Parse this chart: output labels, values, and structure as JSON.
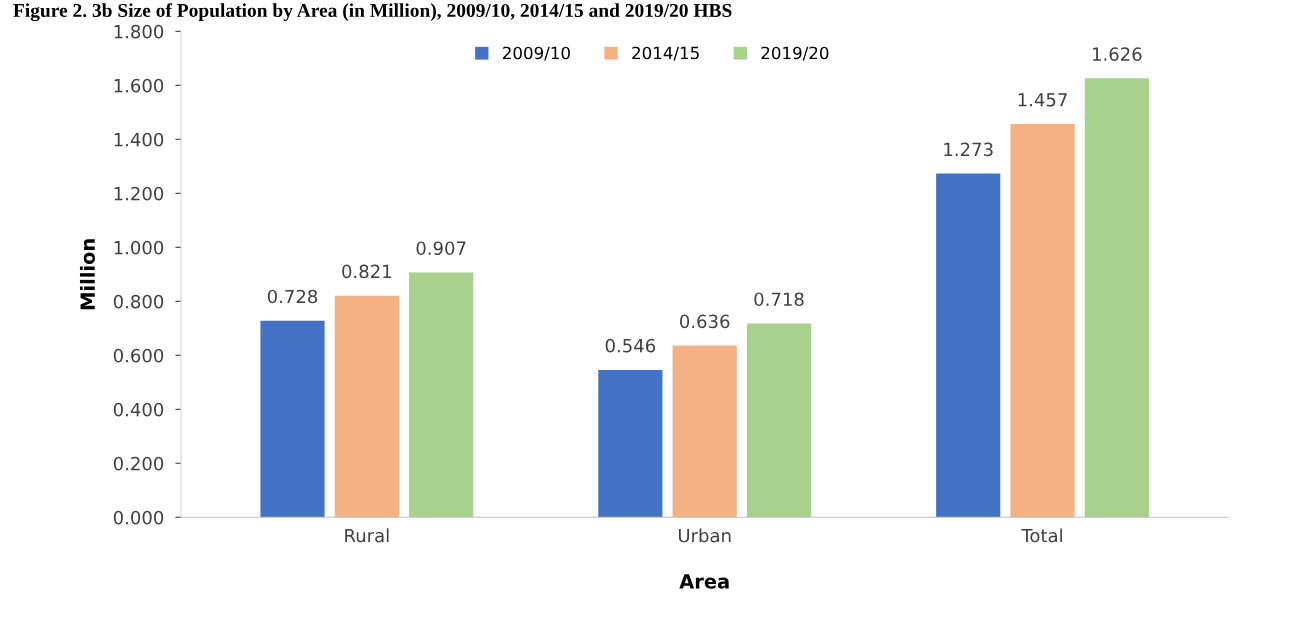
{
  "chart_data": {
    "type": "bar",
    "title": "Figure 2. 3b Size of Population by Area (in Million), 2009/10, 2014/15 and 2019/20 HBS",
    "xlabel": "Area",
    "ylabel": "Million",
    "categories": [
      "Rural",
      "Urban",
      "Total"
    ],
    "series": [
      {
        "name": "2009/10",
        "color": "#4472c4",
        "values": [
          0.728,
          0.546,
          1.273
        ]
      },
      {
        "name": "2014/15",
        "color": "#f4b183",
        "values": [
          0.821,
          0.636,
          1.457
        ]
      },
      {
        "name": "2019/20",
        "color": "#a9d18e",
        "values": [
          0.907,
          0.718,
          1.626
        ]
      }
    ],
    "ylim": [
      0,
      1.8
    ],
    "yticks": [
      {
        "value": 0,
        "label": "0.000"
      },
      {
        "value": 0.2,
        "label": "0.200"
      },
      {
        "value": 0.4,
        "label": "0.400"
      },
      {
        "value": 0.6,
        "label": "0.600"
      },
      {
        "value": 0.8,
        "label": "0.800"
      },
      {
        "value": 1.0,
        "label": "1.000"
      },
      {
        "value": 1.2,
        "label": "1.200"
      },
      {
        "value": 1.4,
        "label": "1.400"
      },
      {
        "value": 1.6,
        "label": "1.600"
      },
      {
        "value": 1.8,
        "label": "1.800"
      }
    ],
    "data_labels": true,
    "grid": false,
    "legend": "top"
  }
}
